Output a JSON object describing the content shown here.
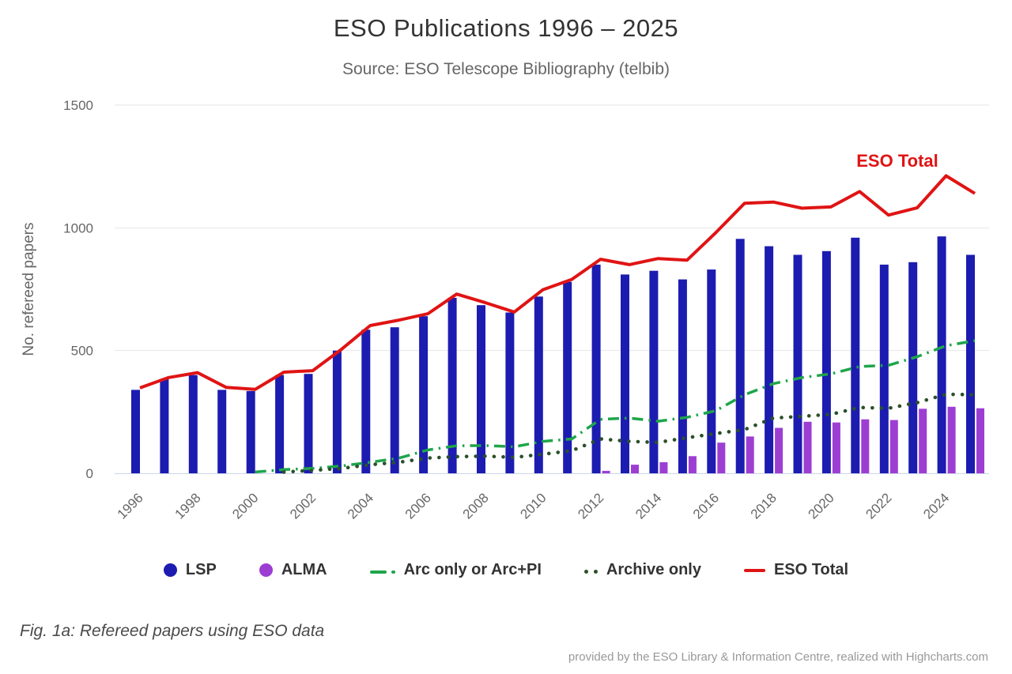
{
  "title": "ESO Publications 1996 – 2025",
  "subtitle": "Source: ESO Telescope Bibliography (telbib)",
  "annotation_label": "ESO Total",
  "caption": "Fig. 1a: Refereed papers using ESO data",
  "credit": "provided by the ESO Library & Information Centre, realized with Highcharts.com",
  "colors": {
    "lsp_blue": "#1c1cb0",
    "alma_purple": "#9d3ed3",
    "arc_green": "#1fa54a",
    "archive_darkgreen": "#2a512a",
    "total_red": "#e01414",
    "grid": "#e6e6e6",
    "axis_line": "#ccd6eb",
    "tick_text": "#666666"
  },
  "chart_data": {
    "type": "bar",
    "title": "ESO Publications 1996 – 2025",
    "subtitle": "Source: ESO Telescope Bibliography (telbib)",
    "xlabel": "",
    "ylabel": "No. refereed papers",
    "ylim": [
      0,
      1500
    ],
    "yticks": [
      0,
      500,
      1000,
      1500
    ],
    "grid": true,
    "legend_position": "bottom",
    "annotation": {
      "text": "ESO Total",
      "x": 2021,
      "y": 1270
    },
    "x": [
      1996,
      1997,
      1998,
      1999,
      2000,
      2001,
      2002,
      2003,
      2004,
      2005,
      2006,
      2007,
      2008,
      2009,
      2010,
      2011,
      2012,
      2013,
      2014,
      2015,
      2016,
      2017,
      2018,
      2019,
      2020,
      2021,
      2022,
      2023,
      2024,
      2025
    ],
    "xtick_labels": [
      "1996",
      "1998",
      "2000",
      "2002",
      "2004",
      "2006",
      "2008",
      "2010",
      "2012",
      "2014",
      "2016",
      "2018",
      "2020",
      "2022",
      "2024"
    ],
    "series": [
      {
        "name": "LSP",
        "type": "bar",
        "color": "#1c1cb0",
        "values": [
          340,
          385,
          400,
          340,
          335,
          400,
          405,
          500,
          585,
          595,
          640,
          715,
          685,
          655,
          720,
          780,
          850,
          810,
          825,
          790,
          830,
          955,
          925,
          890,
          905,
          960,
          850,
          860,
          965,
          890
        ]
      },
      {
        "name": "ALMA",
        "type": "bar",
        "color": "#9d3ed3",
        "values": [
          null,
          null,
          null,
          null,
          null,
          null,
          null,
          null,
          null,
          null,
          null,
          null,
          null,
          null,
          null,
          null,
          10,
          35,
          45,
          70,
          125,
          150,
          185,
          210,
          207,
          220,
          217,
          263,
          271,
          265
        ]
      },
      {
        "name": "Arc only or Arc+PI",
        "type": "line",
        "line_style": "dashdot",
        "color": "#1fa54a",
        "values": [
          null,
          null,
          null,
          null,
          5,
          15,
          20,
          30,
          45,
          62,
          95,
          112,
          113,
          108,
          130,
          140,
          220,
          225,
          212,
          228,
          255,
          320,
          365,
          390,
          405,
          435,
          440,
          475,
          520,
          540
        ]
      },
      {
        "name": "Archive only",
        "type": "line",
        "line_style": "dotted",
        "color": "#2a512a",
        "values": [
          null,
          null,
          null,
          null,
          null,
          5,
          12,
          20,
          35,
          45,
          62,
          68,
          70,
          65,
          78,
          92,
          140,
          130,
          126,
          145,
          162,
          178,
          225,
          232,
          240,
          268,
          265,
          288,
          322,
          320
        ]
      },
      {
        "name": "ESO Total",
        "type": "line",
        "line_style": "solid",
        "color": "#e01414",
        "values": [
          348,
          390,
          410,
          350,
          342,
          412,
          418,
          505,
          602,
          624,
          650,
          730,
          695,
          657,
          748,
          790,
          872,
          850,
          875,
          868,
          980,
          1100,
          1105,
          1080,
          1085,
          1148,
          1052,
          1082,
          1212,
          1140
        ]
      }
    ]
  }
}
